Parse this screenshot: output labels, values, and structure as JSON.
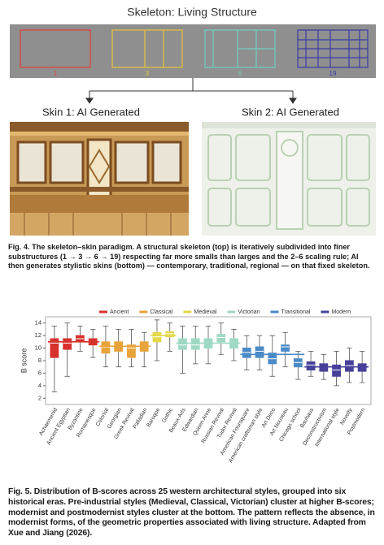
{
  "figure4": {
    "title": "Skeleton: Living Structure",
    "steps": [
      {
        "label": "1",
        "color": "#e0403a"
      },
      {
        "label": "3",
        "color": "#e8c23a"
      },
      {
        "label": "6",
        "color": "#6fd0c0"
      },
      {
        "label": "19",
        "color": "#3a3aa8"
      }
    ],
    "skin1": "Skin 1: AI Generated",
    "skin2": "Skin 2: AI Generated",
    "caption_label": "Fig. 4.",
    "caption": "The skeleton–skin paradigm. A structural skeleton (top) is iteratively subdivided into finer substructures (1 → 3 → 6 → 19) respecting far more smalls than larges and the 2–6 scaling rule; AI then generates stylistic skins (bottom) — contemporary, traditional, regional — on that fixed skeleton."
  },
  "chart_data": {
    "type": "box",
    "ylabel": "B score",
    "ylim": [
      1,
      15
    ],
    "yticks": [
      2,
      4,
      6,
      8,
      10,
      12,
      14
    ],
    "series": [
      {
        "name": "Ancient",
        "color": "#d7322c",
        "group_median": 11,
        "categories": [
          "Achaemenid",
          "Ancient Egyptian",
          "Byzantine",
          "Romanesque"
        ],
        "min": [
          3,
          5.5,
          9.5,
          8.5
        ],
        "q1": [
          8.5,
          9.8,
          11,
          10.5
        ],
        "median": [
          10.8,
          10.8,
          11.5,
          11
        ],
        "q3": [
          11.5,
          11.5,
          12,
          11.5
        ],
        "max": [
          13.5,
          14,
          13.5,
          13
        ]
      },
      {
        "name": "Classical",
        "color": "#e8a33a",
        "group_median": 10.3,
        "categories": [
          "Colonial",
          "Georgian",
          "Greek Revival",
          "Palladian"
        ],
        "min": [
          7,
          7,
          7,
          7
        ],
        "q1": [
          9.2,
          9.5,
          8.5,
          9.5
        ],
        "median": [
          10.2,
          10.3,
          10,
          10.3
        ],
        "q3": [
          11,
          11,
          10.5,
          11
        ],
        "max": [
          13.5,
          13,
          13,
          12.5
        ]
      },
      {
        "name": "Medieval",
        "color": "#e2d84a",
        "group_median": 12,
        "categories": [
          "Baroque",
          "Gothic"
        ],
        "min": [
          8,
          9.5
        ],
        "q1": [
          11,
          11.8
        ],
        "median": [
          11.8,
          12.3
        ],
        "q3": [
          12.5,
          12.6
        ],
        "max": [
          14.5,
          14
        ]
      },
      {
        "name": "Victorian",
        "color": "#9fd9c4",
        "group_median": 10.8,
        "categories": [
          "Beaux-Arts",
          "Edwardian",
          "Queen Anne",
          "Russian Revival",
          "Tudor Revival"
        ],
        "min": [
          6,
          7.5,
          7.5,
          9,
          8
        ],
        "q1": [
          9.8,
          9.8,
          10,
          11,
          10
        ],
        "median": [
          10.5,
          10.5,
          10.8,
          11.7,
          10.8
        ],
        "q3": [
          11.5,
          11.5,
          11.5,
          12.2,
          11.5
        ],
        "max": [
          13.5,
          13.5,
          13.5,
          14,
          13
        ]
      },
      {
        "name": "Transitional",
        "color": "#4a8ac6",
        "group_median": 9,
        "categories": [
          "American Foursquare",
          "American craftsman style",
          "Art Deco",
          "Art Nouveau",
          "Chicago school"
        ],
        "min": [
          6.5,
          6.5,
          5.5,
          7,
          5
        ],
        "q1": [
          8.5,
          8.5,
          7.5,
          9.5,
          7
        ],
        "median": [
          9.3,
          9.5,
          8.3,
          10.2,
          7.7
        ],
        "q3": [
          10,
          10.2,
          9.2,
          10.5,
          8.3
        ],
        "max": [
          12,
          12,
          12,
          12.5,
          9.5
        ]
      },
      {
        "name": "Modern",
        "color": "#46409a",
        "group_median": 7,
        "categories": [
          "Bauhaus",
          "Deconstructivism",
          "International style",
          "Novelty",
          "Postmodern"
        ],
        "min": [
          5.5,
          5,
          4,
          4.5,
          4.5
        ],
        "q1": [
          6.5,
          6.3,
          5.5,
          6.3,
          6.3
        ],
        "median": [
          7.3,
          7,
          6.5,
          7.2,
          7
        ],
        "q3": [
          7.8,
          7.5,
          7.3,
          8,
          7.5
        ],
        "max": [
          9.5,
          9,
          9.5,
          10,
          9.5
        ]
      }
    ]
  },
  "figure5": {
    "caption_label": "Fig. 5.",
    "caption": "Distribution of B-scores across 25 western architectural styles, grouped into six historical eras. Pre-industrial styles (Medieval, Classical, Victorian) cluster at higher B-scores; modernist and postmodernist styles cluster at the bottom. The pattern reflects the absence, in modernist forms, of the geometric properties associated with living structure. Adapted from Xue and Jiang (2026)."
  }
}
